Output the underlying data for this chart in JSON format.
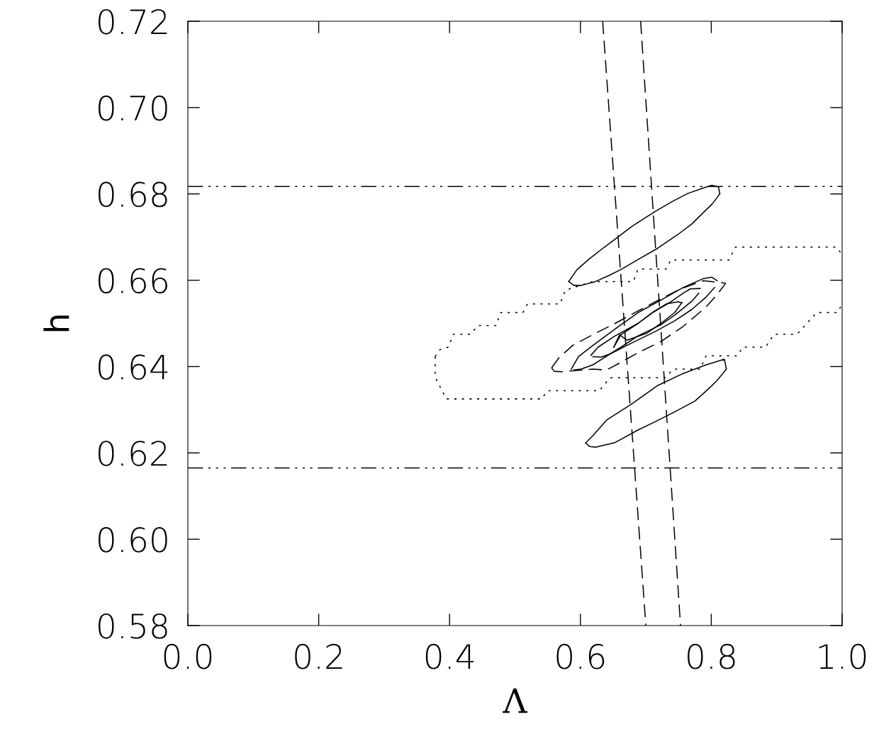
{
  "chart_data": {
    "type": "line",
    "xlabel": "Λ",
    "ylabel": "h",
    "xlim": [
      0.0,
      1.0
    ],
    "ylim": [
      0.58,
      0.72
    ],
    "xticks": [
      {
        "value": 0.0,
        "label": "0.0"
      },
      0.2,
      0.4,
      0.6,
      0.8,
      {
        "value": 1.0,
        "label": "1.0"
      }
    ],
    "yticks": [
      {
        "value": 0.58,
        "label": "0.58"
      },
      {
        "value": 0.6,
        "label": "0.60"
      },
      0.62,
      0.64,
      0.66,
      0.68,
      {
        "value": 0.7,
        "label": "0.70"
      },
      0.72
    ],
    "grid": false,
    "legend": false,
    "marker": "none",
    "ref_lines": [
      {
        "axis": "y",
        "value": 0.6817,
        "color": "#000000",
        "line_style": "dashdot"
      },
      {
        "axis": "y",
        "value": 0.6165,
        "color": "#000000",
        "line_style": "dashdot"
      }
    ],
    "series": [
      {
        "color": "#000000",
        "line_style": "dashed",
        "x": [
          0.634,
          0.7
        ],
        "values": [
          0.72,
          0.58
        ]
      },
      {
        "color": "#000000",
        "line_style": "dashed",
        "x": [
          0.692,
          0.753
        ],
        "values": [
          0.72,
          0.58
        ]
      },
      {
        "color": "#000000",
        "line_style": "solid",
        "x": [
          0.582,
          0.595,
          0.614,
          0.636,
          0.653,
          0.679,
          0.714,
          0.74,
          0.764,
          0.788,
          0.801,
          0.811,
          0.813
        ],
        "values": [
          0.6597,
          0.6625,
          0.665,
          0.6676,
          0.6695,
          0.6725,
          0.6759,
          0.6782,
          0.6801,
          0.6814,
          0.682,
          0.6816,
          0.68
        ]
      },
      {
        "color": "#000000",
        "line_style": "solid",
        "x": [
          0.582,
          0.59,
          0.601,
          0.623,
          0.645,
          0.662,
          0.688,
          0.718,
          0.749,
          0.77,
          0.788,
          0.801,
          0.813
        ],
        "values": [
          0.6597,
          0.6588,
          0.6588,
          0.6597,
          0.6612,
          0.6625,
          0.6648,
          0.6674,
          0.6706,
          0.673,
          0.6757,
          0.6776,
          0.68
        ]
      },
      {
        "color": "#000000",
        "line_style": "solid",
        "x": [
          0.608,
          0.619,
          0.64,
          0.679,
          0.718,
          0.757,
          0.792,
          0.82,
          0.823
        ],
        "values": [
          0.6223,
          0.624,
          0.6276,
          0.6314,
          0.6356,
          0.6384,
          0.6404,
          0.6417,
          0.6394
        ]
      },
      {
        "color": "#000000",
        "line_style": "solid",
        "x": [
          0.608,
          0.614,
          0.623,
          0.653,
          0.688,
          0.714,
          0.744,
          0.775,
          0.794,
          0.809,
          0.823
        ],
        "values": [
          0.6223,
          0.6215,
          0.6213,
          0.6224,
          0.6253,
          0.6272,
          0.6295,
          0.632,
          0.6346,
          0.6368,
          0.6394
        ]
      },
      {
        "color": "#000000",
        "line_style": "dotted",
        "x": [
          0.378,
          0.378,
          0.395,
          0.541,
          0.549,
          0.629,
          0.645,
          0.729,
          0.742,
          0.783,
          0.792,
          0.84,
          0.848,
          0.883,
          0.896,
          0.931,
          0.961,
          0.993,
          1.0
        ],
        "values": [
          0.6423,
          0.6375,
          0.6325,
          0.6325,
          0.6344,
          0.6344,
          0.6374,
          0.6374,
          0.6394,
          0.6394,
          0.6425,
          0.6425,
          0.6445,
          0.6445,
          0.6475,
          0.6475,
          0.6525,
          0.6525,
          0.6545
        ]
      },
      {
        "color": "#000000",
        "line_style": "dotted",
        "x": [
          0.378,
          0.385,
          0.398,
          0.406,
          0.432,
          0.443,
          0.471,
          0.478,
          0.512,
          0.519,
          0.569,
          0.577,
          0.619,
          0.681,
          0.688,
          0.731,
          0.738,
          0.827,
          0.837,
          0.991,
          1.0
        ],
        "values": [
          0.6423,
          0.6439,
          0.6445,
          0.6475,
          0.6475,
          0.6495,
          0.6495,
          0.6525,
          0.6525,
          0.6545,
          0.6545,
          0.6577,
          0.6597,
          0.6597,
          0.6626,
          0.6626,
          0.6647,
          0.6647,
          0.6677,
          0.6677,
          0.666
        ]
      },
      {
        "color": "#000000",
        "line_style": "dashed",
        "x": [
          0.556,
          0.567,
          0.588,
          0.619,
          0.653,
          0.688,
          0.723,
          0.753,
          0.788,
          0.822
        ],
        "values": [
          0.6397,
          0.642,
          0.6449,
          0.6474,
          0.65,
          0.6529,
          0.6557,
          0.658,
          0.6599,
          0.6593
        ]
      },
      {
        "color": "#000000",
        "line_style": "dashed",
        "x": [
          0.556,
          0.56,
          0.571,
          0.593,
          0.619,
          0.64,
          0.662,
          0.688,
          0.723,
          0.757,
          0.792,
          0.809,
          0.822
        ],
        "values": [
          0.6397,
          0.6389,
          0.6388,
          0.6391,
          0.6394,
          0.6392,
          0.641,
          0.6432,
          0.6458,
          0.6493,
          0.6538,
          0.6567,
          0.6593
        ]
      },
      {
        "color": "#000000",
        "line_style": "solid",
        "x": [
          0.586,
          0.597,
          0.619,
          0.653,
          0.688,
          0.723,
          0.757,
          0.788,
          0.801,
          0.809
        ],
        "values": [
          0.6394,
          0.6423,
          0.6449,
          0.6487,
          0.6525,
          0.6554,
          0.6583,
          0.6604,
          0.6607,
          0.6599
        ]
      },
      {
        "color": "#000000",
        "line_style": "solid",
        "x": [
          0.59,
          0.601,
          0.619,
          0.645,
          0.679,
          0.714,
          0.744,
          0.77,
          0.792,
          0.805
        ],
        "values": [
          0.6392,
          0.6394,
          0.6404,
          0.6429,
          0.6455,
          0.6481,
          0.6506,
          0.6532,
          0.6561,
          0.6583
        ]
      },
      {
        "color": "#000000",
        "line_style": "solid",
        "x": [
          0.616,
          0.627,
          0.653,
          0.688,
          0.71,
          0.736,
          0.757,
          0.768,
          0.783
        ],
        "values": [
          0.6426,
          0.6445,
          0.6471,
          0.65,
          0.6525,
          0.6548,
          0.657,
          0.658,
          0.6581
        ]
      },
      {
        "color": "#000000",
        "line_style": "solid",
        "x": [
          0.619,
          0.632,
          0.645,
          0.662,
          0.688,
          0.723,
          0.744,
          0.77,
          0.781
        ],
        "values": [
          0.6423,
          0.6422,
          0.6429,
          0.6445,
          0.6471,
          0.6497,
          0.6519,
          0.6551,
          0.657
        ]
      },
      {
        "color": "#000000",
        "line_style": "solid",
        "x": [
          0.651,
          0.662,
          0.688,
          0.71,
          0.731,
          0.749,
          0.755
        ],
        "values": [
          0.6445,
          0.6474,
          0.65,
          0.6525,
          0.6545,
          0.655,
          0.6548
        ]
      },
      {
        "color": "#000000",
        "line_style": "solid",
        "x": [
          0.651,
          0.66,
          0.671,
          0.701,
          0.723,
          0.744,
          0.755
        ],
        "values": [
          0.6445,
          0.6474,
          0.6461,
          0.6477,
          0.65,
          0.6525,
          0.6548
        ]
      }
    ]
  }
}
